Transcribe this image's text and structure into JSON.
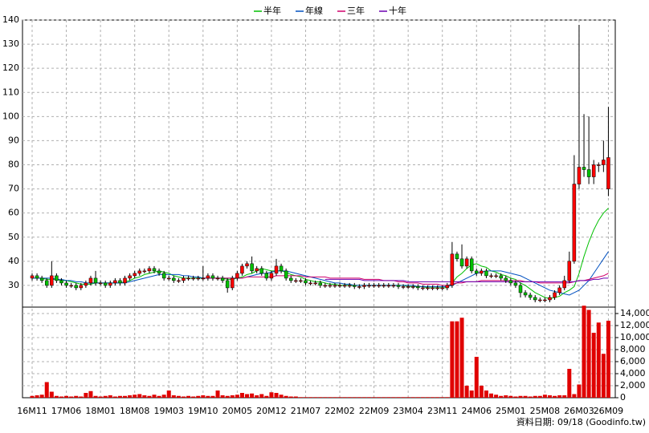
{
  "chart_data": {
    "type": "candlestick",
    "categories": [
      "16M11",
      null,
      null,
      null,
      null,
      null,
      null,
      "17M06",
      null,
      null,
      null,
      null,
      null,
      null,
      "18M01",
      null,
      null,
      null,
      null,
      null,
      null,
      "18M08",
      null,
      null,
      null,
      null,
      null,
      null,
      "19M03",
      null,
      null,
      null,
      null,
      null,
      null,
      "19M10",
      null,
      null,
      null,
      null,
      null,
      null,
      "20M05",
      null,
      null,
      null,
      null,
      null,
      null,
      "20M12",
      null,
      null,
      null,
      null,
      null,
      null,
      "21M07",
      null,
      null,
      null,
      null,
      null,
      null,
      "22M02",
      null,
      null,
      null,
      null,
      null,
      null,
      "22M09",
      null,
      null,
      null,
      null,
      null,
      null,
      "23M04",
      null,
      null,
      null,
      null,
      null,
      null,
      "23M11",
      null,
      null,
      null,
      null,
      null,
      null,
      "24M06",
      null,
      null,
      null,
      null,
      null,
      null,
      "25M01",
      null,
      null,
      null,
      null,
      null,
      null,
      "25M08",
      null,
      null,
      null,
      null,
      null,
      null,
      "26M03",
      null,
      null,
      null,
      null,
      null,
      "26M09"
    ],
    "open": [
      33,
      34,
      33,
      32,
      30,
      34,
      32,
      31,
      30,
      30,
      29,
      30,
      31,
      33,
      31,
      31,
      30,
      31,
      32,
      31,
      33,
      34,
      35,
      36,
      36,
      37,
      36,
      35,
      33,
      33,
      32,
      32,
      33,
      33,
      33,
      33,
      33,
      34,
      33,
      33,
      32,
      29,
      33,
      35,
      38,
      39,
      36,
      37,
      35,
      33,
      35,
      38,
      36,
      33,
      32,
      32,
      32,
      31,
      31,
      31,
      30,
      30,
      30,
      30,
      30,
      30,
      30,
      29.5,
      29.5,
      30,
      30,
      30,
      30,
      30,
      30,
      30,
      29.5,
      29.5,
      29.5,
      29.5,
      29,
      29,
      29,
      29,
      29,
      29,
      30,
      43,
      41,
      38,
      41,
      36,
      35,
      36,
      34,
      34,
      34,
      33,
      32,
      31,
      30,
      27,
      26,
      25,
      24,
      24,
      24,
      25,
      27,
      29,
      32,
      40,
      72,
      79,
      78,
      75,
      80,
      80,
      70
    ],
    "high": [
      35,
      35,
      34,
      33,
      40,
      35,
      33,
      32,
      31,
      31,
      31,
      32,
      34,
      36,
      32,
      32,
      32,
      33,
      33,
      34,
      35,
      36,
      37,
      37,
      38,
      38,
      37,
      36,
      34,
      34,
      33,
      34,
      34,
      34,
      34,
      38,
      35,
      35,
      34,
      34,
      33,
      34,
      36,
      39,
      40,
      42,
      38,
      38,
      36,
      36,
      41,
      39,
      37,
      34,
      33,
      33,
      33,
      32,
      32,
      32,
      31,
      31,
      31,
      31,
      31,
      31,
      31,
      30.5,
      31,
      31,
      31,
      31,
      31,
      31,
      31,
      31,
      30.5,
      30.5,
      30.5,
      30.5,
      30,
      30,
      30,
      30,
      30,
      31,
      48,
      44,
      47,
      42,
      42,
      37,
      37,
      37,
      35,
      35,
      35,
      34,
      33,
      32,
      31,
      28,
      27,
      26,
      25,
      25,
      26,
      28,
      30,
      34,
      44,
      84,
      138,
      101,
      100,
      82,
      81,
      90,
      104
    ],
    "low": [
      32,
      32,
      31,
      29,
      29,
      31,
      30,
      29,
      29,
      28,
      28,
      29,
      30,
      30,
      30,
      29,
      29,
      30,
      30,
      30,
      32,
      33,
      34,
      35,
      35,
      35,
      34,
      32,
      32,
      31,
      31,
      31,
      32,
      32,
      32,
      32,
      32,
      32,
      32,
      31,
      27,
      28,
      32,
      34,
      37,
      35,
      35,
      34,
      32,
      32,
      34,
      35,
      32,
      31,
      31,
      31,
      30,
      30,
      30,
      29,
      29,
      29,
      29,
      29,
      29,
      29,
      28.5,
      28.5,
      28.5,
      29,
      29,
      29,
      29,
      29,
      29,
      28.5,
      28.5,
      28.5,
      28.5,
      28,
      28,
      28,
      28,
      28,
      28,
      28,
      29,
      40,
      37,
      37,
      35,
      34,
      34,
      33,
      33,
      33,
      32,
      31,
      30,
      29,
      25,
      25,
      24,
      23,
      23,
      23,
      23,
      24,
      26,
      28,
      31,
      39,
      70,
      75,
      72,
      72,
      77,
      77,
      67
    ],
    "close": [
      34,
      33,
      32,
      30,
      34,
      32,
      31,
      30,
      30,
      29,
      30,
      31,
      33,
      31,
      31,
      30,
      31,
      32,
      31,
      33,
      34,
      35,
      36,
      36,
      37,
      36,
      35,
      33,
      33,
      32,
      32,
      33,
      33,
      33,
      33,
      33,
      34,
      33,
      33,
      32,
      29,
      33,
      35,
      38,
      39,
      36,
      37,
      35,
      33,
      35,
      38,
      36,
      33,
      32,
      32,
      32,
      31,
      31,
      31,
      30,
      30,
      30,
      30,
      30,
      30,
      30,
      29.5,
      29.5,
      30,
      30,
      30,
      30,
      30,
      30,
      30,
      29.5,
      29.5,
      29.5,
      29.5,
      29,
      29,
      29,
      29,
      29,
      29,
      30,
      43,
      41,
      38,
      41,
      36,
      35,
      36,
      34,
      34,
      34,
      33,
      32,
      31,
      30,
      27,
      26,
      25,
      24,
      24,
      24,
      25,
      27,
      29,
      32,
      40,
      72,
      79,
      78,
      75,
      80,
      80,
      82,
      83
    ],
    "up_color": "#ff0000",
    "down_color": "#00c000",
    "ylim": [
      21,
      140
    ],
    "yticks": [
      30,
      40,
      50,
      60,
      70,
      80,
      90,
      100,
      110,
      120,
      130,
      140
    ],
    "grid": true,
    "legend_position": "top",
    "lines": [
      {
        "name": "半年",
        "color": "#00c000",
        "values": [
          33,
          33,
          33,
          32.5,
          32.5,
          32.5,
          32,
          32,
          31.5,
          31,
          30.5,
          30.5,
          30.5,
          31,
          31,
          31,
          31,
          31,
          31,
          31.5,
          32,
          33,
          33.5,
          34.5,
          35,
          35.5,
          36,
          35.5,
          35,
          34,
          33.5,
          33,
          33,
          33,
          33,
          33,
          33,
          33,
          33,
          33,
          32.5,
          32.5,
          33,
          33.5,
          34.5,
          35,
          36,
          37,
          36.5,
          36,
          36,
          36,
          35.5,
          34.5,
          34,
          33.5,
          32.5,
          32,
          31.5,
          31.5,
          31,
          30.5,
          30.5,
          30,
          30,
          30,
          30,
          30,
          30,
          30,
          30,
          30,
          30,
          30,
          30,
          30,
          30,
          29.5,
          29.5,
          29.5,
          29.5,
          29,
          29,
          29,
          29,
          29,
          31,
          33.5,
          35,
          37,
          38.5,
          39,
          38,
          37.5,
          36,
          35.5,
          34.5,
          34,
          33,
          32.5,
          31,
          30,
          28.5,
          27,
          26,
          25,
          24.5,
          25,
          25.5,
          27,
          28,
          29.5,
          35,
          42,
          48,
          53,
          57,
          60,
          62
        ]
      },
      {
        "name": "年線",
        "color": "#0050c0",
        "values": [
          33,
          33,
          33,
          33,
          33,
          32.5,
          32.5,
          32,
          32,
          31.5,
          31.5,
          31,
          31,
          31,
          31,
          31,
          31,
          31,
          31,
          31,
          31.5,
          32,
          32.5,
          33,
          33.5,
          34,
          34.5,
          34.5,
          34.5,
          34.5,
          34.5,
          34,
          34,
          33.5,
          33.5,
          33,
          33,
          33,
          33,
          33,
          33,
          33,
          33,
          33,
          33.5,
          34,
          34.5,
          35,
          35,
          35.5,
          36,
          36,
          36,
          35.5,
          35,
          34.5,
          34,
          33.5,
          33,
          32.5,
          32,
          31.5,
          31,
          31,
          30.5,
          30.5,
          30,
          30,
          30,
          30,
          30,
          30,
          30,
          30,
          30,
          30,
          30,
          30,
          30,
          29.5,
          29.5,
          29.5,
          29.5,
          29.5,
          29.5,
          29.5,
          30,
          31,
          32,
          33,
          34,
          35,
          35.5,
          36,
          36,
          36,
          36,
          35.5,
          35,
          34.5,
          34,
          33,
          32,
          31,
          30,
          29,
          28,
          27.5,
          27,
          26.5,
          26,
          27,
          28,
          30,
          32,
          35,
          38,
          41,
          44
        ]
      },
      {
        "name": "三年",
        "color": "#d0006a",
        "values": [
          null,
          null,
          null,
          null,
          null,
          null,
          null,
          null,
          null,
          null,
          null,
          null,
          null,
          null,
          null,
          null,
          null,
          null,
          null,
          null,
          null,
          null,
          null,
          null,
          null,
          null,
          null,
          null,
          null,
          null,
          null,
          null,
          null,
          null,
          null,
          33,
          33,
          33,
          33,
          33,
          33,
          33,
          33,
          33,
          33.5,
          33.5,
          33.5,
          33.5,
          33.5,
          33.5,
          34,
          34,
          34,
          34,
          34,
          34,
          33.5,
          33.5,
          33.5,
          33.5,
          33.5,
          33,
          33,
          33,
          33,
          33,
          33,
          33,
          32.5,
          32.5,
          32.5,
          32.5,
          32,
          32,
          32,
          31.5,
          31.5,
          31,
          31,
          31,
          30.5,
          30.5,
          30.5,
          30.5,
          30,
          30,
          30.5,
          31,
          31,
          31.5,
          31.5,
          31.5,
          32,
          32,
          32,
          32,
          32,
          32,
          32,
          32,
          32,
          31.5,
          31.5,
          31.5,
          31,
          31,
          31,
          31,
          31,
          31,
          31,
          31.5,
          32,
          32,
          32.5,
          33,
          33.5,
          34,
          35
        ]
      },
      {
        "name": "十年",
        "color": "#6a00b0",
        "values": [
          null,
          null,
          null,
          null,
          null,
          null,
          null,
          null,
          null,
          null,
          null,
          null,
          null,
          null,
          null,
          null,
          null,
          null,
          null,
          null,
          null,
          null,
          null,
          null,
          null,
          null,
          null,
          null,
          null,
          null,
          null,
          null,
          null,
          null,
          null,
          null,
          null,
          null,
          null,
          null,
          null,
          null,
          null,
          null,
          null,
          null,
          null,
          null,
          null,
          null,
          null,
          null,
          null,
          null,
          null,
          null,
          null,
          null,
          null,
          null,
          32.5,
          32.5,
          32.5,
          32.5,
          32.5,
          32.5,
          32.5,
          32.5,
          32,
          32,
          32,
          32,
          32,
          32,
          32,
          32,
          32,
          31.5,
          31.5,
          31.5,
          31.5,
          31.5,
          31.5,
          31.5,
          31.5,
          31.5,
          31.5,
          31.5,
          31.5,
          31.5,
          31.5,
          31.5,
          31.5,
          31.5,
          31.5,
          31.5,
          31.5,
          31.5,
          31.5,
          31.5,
          31.5,
          31.5,
          31.5,
          31.5,
          31.5,
          31.5,
          31.5,
          31.5,
          31.5,
          31.5,
          31.5,
          31.5,
          32,
          32,
          32,
          32.5,
          32.5,
          33,
          33
        ]
      }
    ],
    "volume": {
      "color": "#e00000",
      "values": [
        300,
        400,
        500,
        2600,
        1000,
        300,
        200,
        300,
        200,
        300,
        200,
        800,
        1100,
        300,
        200,
        300,
        400,
        200,
        300,
        300,
        400,
        500,
        600,
        400,
        300,
        500,
        300,
        500,
        1200,
        400,
        300,
        200,
        300,
        200,
        300,
        400,
        300,
        300,
        1200,
        400,
        300,
        400,
        500,
        800,
        600,
        700,
        400,
        600,
        300,
        900,
        800,
        500,
        300,
        200,
        200,
        100,
        100,
        100,
        100,
        100,
        100,
        100,
        100,
        100,
        100,
        100,
        100,
        100,
        100,
        100,
        100,
        100,
        100,
        100,
        100,
        100,
        100,
        100,
        100,
        100,
        100,
        100,
        100,
        100,
        100,
        100,
        12700,
        12700,
        13300,
        2000,
        1200,
        6800,
        2000,
        1200,
        700,
        500,
        300,
        400,
        300,
        200,
        300,
        300,
        200,
        300,
        300,
        500,
        400,
        300,
        400,
        400,
        4800,
        600,
        2200,
        15300,
        14600,
        10800,
        12500,
        7300,
        12800
      ],
      "ylim": [
        0,
        16000
      ],
      "yticks": [
        0,
        {
          "value": 2000,
          "label": "2,000"
        },
        {
          "value": 4000,
          "label": "4,000"
        },
        {
          "value": 6000,
          "label": "6,000"
        },
        {
          "value": 8000,
          "label": "8,000"
        },
        {
          "value": 10000,
          "label": "10,000"
        },
        {
          "value": 12000,
          "label": "12,000"
        },
        {
          "value": 14000,
          "label": "14,000"
        }
      ]
    },
    "source": "資料日期: 09/18 (Goodinfo.tw)"
  }
}
